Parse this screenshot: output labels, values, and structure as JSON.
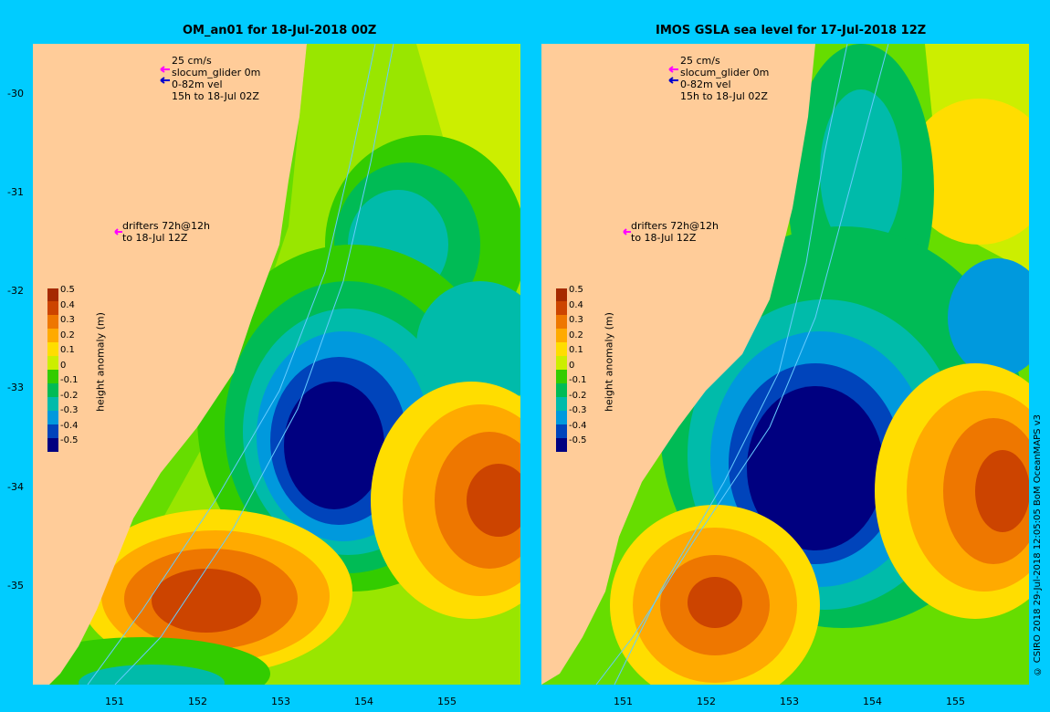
{
  "panels": [
    {
      "title": "OM_an01 for 18-Jul-2018 00Z",
      "legend": [
        "25 cm/s",
        "slocum_glider 0m",
        "0-82m vel",
        "15h to 18-Jul 02Z"
      ],
      "drifters": [
        "drifters 72h@12h",
        "to 18-Jul 12Z"
      ]
    },
    {
      "title": "IMOS GSLA sea level  for 17-Jul-2018 12Z",
      "legend": [
        "25 cm/s",
        "slocum_glider 0m",
        "0-82m vel",
        "15h to 18-Jul 02Z"
      ],
      "drifters": [
        "drifters 72h@12h",
        "to 18-Jul 12Z"
      ]
    }
  ],
  "colorbar": {
    "label": "height anomaly (m)",
    "ticks": [
      "0.5",
      "0.4",
      "0.3",
      "0.2",
      "0.1",
      "0",
      "-0.1",
      "-0.2",
      "-0.3",
      "-0.4",
      "-0.5"
    ],
    "colors": [
      "#a52a00",
      "#cc4400",
      "#ee7700",
      "#ffaa00",
      "#ffdd00",
      "#ccee00",
      "#33cc00",
      "#00bb55",
      "#00bbaa",
      "#0099dd",
      "#0044bb",
      "#000080"
    ]
  },
  "axes": {
    "lat_labels": [
      "-30",
      "-31",
      "-32",
      "-33",
      "-34",
      "-35"
    ],
    "lon_labels": [
      "151",
      "152",
      "153",
      "154",
      "155"
    ]
  },
  "copyright": "© CSIRO 2018   29-Jul-2018 12:05:05 BoM OceanMAPS v3"
}
